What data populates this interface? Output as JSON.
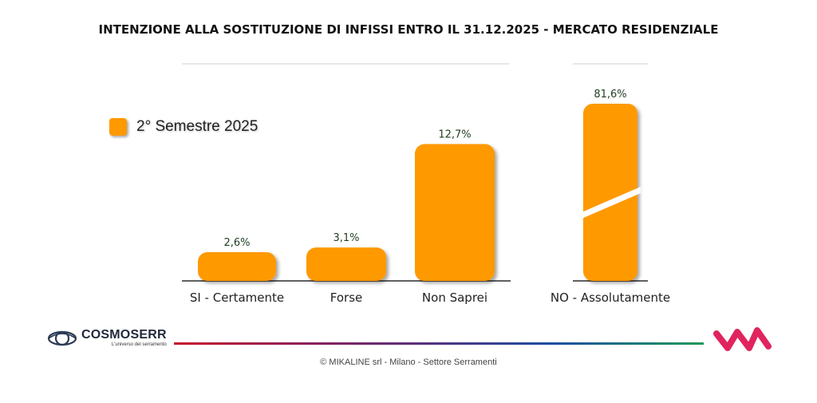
{
  "title": "INTENZIONE ALLA SOSTITUZIONE DI INFISSI ENTRO IL 31.12.2025 - MERCATO RESIDENZIALE",
  "legend": {
    "label": "2° Semestre 2025",
    "color": "#ff9900"
  },
  "chart_data": {
    "type": "bar",
    "categories": [
      "SI - Certamente",
      "Forse",
      "Non Saprei",
      "NO - Assolutamente"
    ],
    "series": [
      {
        "name": "2° Semestre 2025",
        "values": [
          2.6,
          3.1,
          12.7,
          81.6
        ]
      }
    ],
    "value_labels": [
      "2,6%",
      "3,1%",
      "12,7%",
      "81,6%"
    ],
    "broken_axis_category": "NO - Assolutamente",
    "bar_color": "#ff9900",
    "legend_position": "top-left",
    "grid": false
  },
  "logos": {
    "left_name": "COSMOSERR",
    "left_tagline": "L'universo del serramento"
  },
  "footer": "© MIKALINE srl -  Milano - Settore Serramenti"
}
